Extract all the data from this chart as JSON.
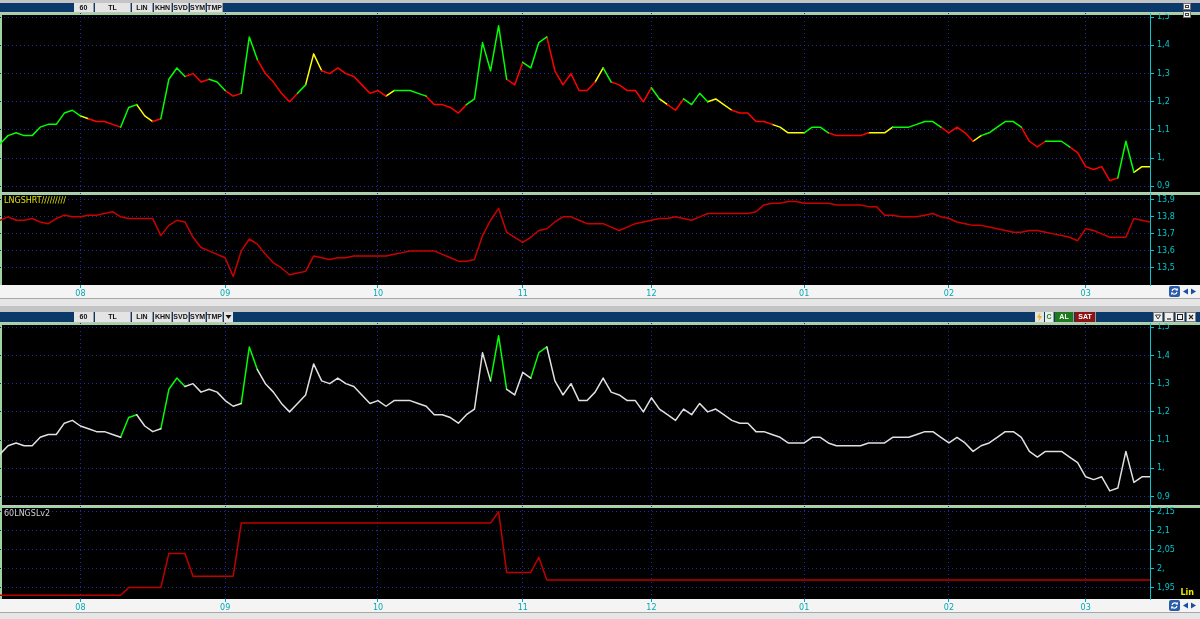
{
  "chart_data": [
    {
      "type": "line",
      "annotations": [
        "60",
        "TL",
        "LIN",
        "KHN",
        "SVD",
        "SYM",
        "TMP"
      ],
      "categories": [
        null,
        null,
        null,
        null,
        null,
        null,
        null,
        null,
        null,
        null,
        "08",
        null,
        null,
        null,
        null,
        null,
        null,
        null,
        null,
        null,
        null,
        null,
        null,
        null,
        null,
        null,
        null,
        null,
        "09",
        null,
        null,
        null,
        null,
        null,
        null,
        null,
        null,
        null,
        null,
        null,
        null,
        null,
        null,
        null,
        null,
        null,
        null,
        "10",
        null,
        null,
        null,
        null,
        null,
        null,
        null,
        null,
        null,
        null,
        null,
        null,
        null,
        null,
        null,
        null,
        null,
        "11",
        null,
        null,
        null,
        null,
        null,
        null,
        null,
        null,
        null,
        null,
        null,
        null,
        null,
        null,
        null,
        "12",
        null,
        null,
        null,
        null,
        null,
        null,
        null,
        null,
        null,
        null,
        null,
        null,
        null,
        null,
        null,
        null,
        null,
        null,
        "01",
        null,
        null,
        null,
        null,
        null,
        null,
        null,
        null,
        null,
        null,
        null,
        null,
        null,
        null,
        null,
        null,
        null,
        "02",
        null,
        null,
        null,
        null,
        null,
        null,
        null,
        null,
        null,
        null,
        null,
        null,
        null,
        null,
        null,
        null,
        "03",
        null,
        null,
        null,
        null,
        null,
        null,
        null,
        null
      ],
      "series": [
        {
          "color": "#00ff00",
          "values": [
            1.05,
            1.08,
            1.09,
            1.08,
            1.08,
            1.11,
            1.12,
            1.12,
            1.16,
            1.17,
            1.15,
            null,
            null,
            null,
            null,
            1.11,
            1.18,
            1.19,
            null,
            null,
            1.14,
            1.28,
            1.32,
            1.29,
            null,
            null,
            1.28,
            1.27,
            1.24,
            null,
            1.23,
            1.43,
            1.35,
            null,
            null,
            null,
            null,
            1.23,
            1.26,
            null,
            null,
            null,
            null,
            null,
            null,
            null,
            null,
            null,
            null,
            1.24,
            1.24,
            1.24,
            1.23,
            1.22,
            null,
            null,
            null,
            null,
            1.19,
            1.21,
            1.41,
            1.31,
            1.47,
            1.28,
            null,
            1.34,
            1.32,
            1.41,
            1.43,
            null,
            null,
            null,
            null,
            null,
            null,
            1.32,
            1.27,
            null,
            null,
            null,
            null,
            1.25,
            1.21,
            null,
            null,
            1.21,
            1.19,
            1.23,
            1.2,
            null,
            null,
            null,
            null,
            null,
            null,
            null,
            null,
            null,
            null,
            null,
            1.09,
            1.11,
            1.11,
            1.09,
            null,
            null,
            null,
            null,
            null,
            null,
            null,
            1.11,
            1.11,
            1.11,
            1.12,
            1.13,
            1.13,
            1.11,
            null,
            null,
            null,
            null,
            1.08,
            1.09,
            1.11,
            1.13,
            1.13,
            1.11,
            null,
            null,
            1.06,
            1.06,
            1.06,
            1.04,
            null,
            null,
            null,
            null,
            null,
            0.93,
            1.06,
            0.95,
            null,
            null
          ]
        },
        {
          "color": "#ff0000",
          "values": [
            null,
            null,
            null,
            null,
            null,
            null,
            null,
            null,
            null,
            null,
            null,
            1.14,
            1.13,
            1.13,
            1.12,
            1.11,
            null,
            null,
            null,
            1.13,
            1.14,
            null,
            null,
            1.29,
            1.3,
            1.27,
            1.28,
            null,
            1.24,
            1.22,
            1.23,
            null,
            1.35,
            1.3,
            1.27,
            1.23,
            1.2,
            1.23,
            null,
            null,
            1.31,
            1.3,
            1.32,
            1.3,
            1.29,
            1.26,
            1.23,
            1.24,
            1.22,
            null,
            null,
            null,
            null,
            1.22,
            1.19,
            1.19,
            1.18,
            1.16,
            1.19,
            null,
            null,
            null,
            null,
            1.28,
            1.26,
            1.34,
            null,
            null,
            1.43,
            1.31,
            1.26,
            1.3,
            1.24,
            1.24,
            1.27,
            null,
            1.27,
            1.26,
            1.24,
            1.24,
            1.2,
            1.25,
            null,
            1.19,
            1.17,
            1.21,
            null,
            null,
            null,
            null,
            null,
            1.17,
            1.16,
            1.16,
            1.13,
            1.13,
            1.12,
            null,
            null,
            null,
            null,
            null,
            null,
            1.09,
            1.08,
            1.08,
            1.08,
            1.08,
            1.09,
            null,
            null,
            null,
            null,
            null,
            null,
            null,
            null,
            1.11,
            1.09,
            1.11,
            1.09,
            1.06,
            null,
            null,
            null,
            null,
            null,
            1.11,
            1.06,
            1.04,
            1.06,
            null,
            null,
            1.04,
            1.02,
            0.97,
            0.96,
            0.97,
            0.92,
            0.93,
            null,
            null,
            null,
            null
          ]
        },
        {
          "color": "#ffff00",
          "values": [
            null,
            null,
            null,
            null,
            null,
            null,
            null,
            null,
            null,
            null,
            1.15,
            1.14,
            null,
            null,
            null,
            null,
            null,
            1.19,
            1.15,
            1.13,
            null,
            null,
            null,
            null,
            null,
            null,
            null,
            null,
            null,
            null,
            null,
            null,
            null,
            null,
            null,
            null,
            null,
            null,
            1.26,
            1.37,
            1.31,
            null,
            null,
            null,
            null,
            null,
            null,
            null,
            1.22,
            1.24,
            null,
            null,
            null,
            null,
            null,
            null,
            null,
            null,
            null,
            null,
            null,
            null,
            null,
            null,
            null,
            null,
            null,
            null,
            null,
            null,
            null,
            null,
            null,
            null,
            1.27,
            1.32,
            null,
            null,
            null,
            null,
            null,
            null,
            1.21,
            1.19,
            null,
            null,
            null,
            null,
            1.2,
            1.21,
            1.19,
            1.17,
            null,
            null,
            null,
            null,
            1.12,
            1.11,
            1.09,
            1.09,
            1.09,
            null,
            null,
            null,
            null,
            null,
            null,
            null,
            1.09,
            1.09,
            1.09,
            1.11,
            null,
            null,
            null,
            null,
            null,
            null,
            null,
            null,
            null,
            1.06,
            1.08,
            null,
            null,
            null,
            null,
            null,
            null,
            null,
            null,
            null,
            null,
            null,
            null,
            null,
            null,
            null,
            null,
            null,
            null,
            0.95,
            0.97,
            0.97
          ]
        }
      ],
      "ylim": [
        0.88,
        1.515
      ],
      "yticks": [
        {
          "value": 0.9,
          "label": "0,9"
        },
        {
          "value": 1,
          "label": "1,"
        },
        {
          "value": 1.1,
          "label": "1,1"
        },
        {
          "value": 1.2,
          "label": "1,2"
        },
        {
          "value": 1.3,
          "label": "1,3"
        },
        {
          "value": 1.4,
          "label": "1,4"
        },
        {
          "value": 1.5,
          "label": "1,5"
        }
      ],
      "grid": true,
      "tick_labels": "y",
      "marker": "none"
    },
    {
      "type": "line",
      "title": "LNGSHRT/////////",
      "categories": [
        null,
        null,
        null,
        null,
        null,
        null,
        null,
        null,
        null,
        null,
        "08",
        null,
        null,
        null,
        null,
        null,
        null,
        null,
        null,
        null,
        null,
        null,
        null,
        null,
        null,
        null,
        null,
        null,
        "09",
        null,
        null,
        null,
        null,
        null,
        null,
        null,
        null,
        null,
        null,
        null,
        null,
        null,
        null,
        null,
        null,
        null,
        null,
        "10",
        null,
        null,
        null,
        null,
        null,
        null,
        null,
        null,
        null,
        null,
        null,
        null,
        null,
        null,
        null,
        null,
        null,
        "11",
        null,
        null,
        null,
        null,
        null,
        null,
        null,
        null,
        null,
        null,
        null,
        null,
        null,
        null,
        null,
        "12",
        null,
        null,
        null,
        null,
        null,
        null,
        null,
        null,
        null,
        null,
        null,
        null,
        null,
        null,
        null,
        null,
        null,
        null,
        "01",
        null,
        null,
        null,
        null,
        null,
        null,
        null,
        null,
        null,
        null,
        null,
        null,
        null,
        null,
        null,
        null,
        null,
        "02",
        null,
        null,
        null,
        null,
        null,
        null,
        null,
        null,
        null,
        null,
        null,
        null,
        null,
        null,
        null,
        null,
        "03",
        null,
        null,
        null,
        null,
        null,
        null,
        null,
        null
      ],
      "series": [
        {
          "color": "#cc0000",
          "values": [
            13.78,
            13.8,
            13.78,
            13.78,
            13.79,
            13.77,
            13.76,
            13.79,
            13.81,
            13.8,
            13.8,
            13.81,
            13.81,
            13.82,
            13.83,
            13.8,
            13.79,
            13.79,
            13.79,
            13.79,
            13.69,
            13.75,
            13.78,
            13.77,
            13.68,
            13.62,
            13.6,
            13.58,
            13.56,
            13.45,
            13.6,
            13.67,
            13.64,
            13.58,
            13.53,
            13.5,
            13.46,
            13.47,
            13.48,
            13.57,
            13.56,
            13.55,
            13.56,
            13.56,
            13.57,
            13.57,
            13.57,
            13.57,
            13.57,
            13.58,
            13.59,
            13.6,
            13.6,
            13.6,
            13.6,
            13.58,
            13.56,
            13.54,
            13.54,
            13.55,
            13.69,
            13.78,
            13.85,
            13.71,
            13.68,
            13.65,
            13.68,
            13.72,
            13.73,
            13.77,
            13.8,
            13.8,
            13.78,
            13.76,
            13.76,
            13.76,
            13.74,
            13.72,
            13.74,
            13.76,
            13.77,
            13.78,
            13.79,
            13.79,
            13.8,
            13.79,
            13.78,
            13.8,
            13.82,
            13.82,
            13.82,
            13.82,
            13.82,
            13.82,
            13.83,
            13.87,
            13.88,
            13.88,
            13.89,
            13.89,
            13.88,
            13.88,
            13.88,
            13.88,
            13.87,
            13.87,
            13.87,
            13.87,
            13.86,
            13.86,
            13.81,
            13.81,
            13.8,
            13.8,
            13.8,
            13.81,
            13.82,
            13.8,
            13.79,
            13.77,
            13.76,
            13.75,
            13.75,
            13.74,
            13.73,
            13.72,
            13.71,
            13.71,
            13.72,
            13.72,
            13.71,
            13.7,
            13.69,
            13.68,
            13.66,
            13.73,
            13.72,
            13.7,
            13.68,
            13.68,
            13.68,
            13.79,
            13.78,
            13.77
          ]
        }
      ],
      "ylim": [
        13.4,
        13.94
      ],
      "yticks": [
        {
          "value": 13.5,
          "label": "13,5"
        },
        {
          "value": 13.6,
          "label": "13,6"
        },
        {
          "value": 13.7,
          "label": "13,7"
        },
        {
          "value": 13.8,
          "label": "13,8"
        },
        {
          "value": 13.9,
          "label": "13,9"
        }
      ],
      "grid": true,
      "marker": "none"
    },
    {
      "type": "line",
      "annotations": [
        "60",
        "TL",
        "LIN",
        "KHN",
        "SVD",
        "SYM",
        "TMP",
        "C",
        "AL",
        "SAT"
      ],
      "categories": [
        null,
        null,
        null,
        null,
        null,
        null,
        null,
        null,
        null,
        null,
        "08",
        null,
        null,
        null,
        null,
        null,
        null,
        null,
        null,
        null,
        null,
        null,
        null,
        null,
        null,
        null,
        null,
        null,
        "09",
        null,
        null,
        null,
        null,
        null,
        null,
        null,
        null,
        null,
        null,
        null,
        null,
        null,
        null,
        null,
        null,
        null,
        null,
        "10",
        null,
        null,
        null,
        null,
        null,
        null,
        null,
        null,
        null,
        null,
        null,
        null,
        null,
        null,
        null,
        null,
        null,
        "11",
        null,
        null,
        null,
        null,
        null,
        null,
        null,
        null,
        null,
        null,
        null,
        null,
        null,
        null,
        null,
        "12",
        null,
        null,
        null,
        null,
        null,
        null,
        null,
        null,
        null,
        null,
        null,
        null,
        null,
        null,
        null,
        null,
        null,
        null,
        "01",
        null,
        null,
        null,
        null,
        null,
        null,
        null,
        null,
        null,
        null,
        null,
        null,
        null,
        null,
        null,
        null,
        null,
        "02",
        null,
        null,
        null,
        null,
        null,
        null,
        null,
        null,
        null,
        null,
        null,
        null,
        null,
        null,
        null,
        null,
        "03",
        null,
        null,
        null,
        null,
        null,
        null,
        null,
        null
      ],
      "series": [
        {
          "color": "#e0e0e0",
          "values": [
            1.05,
            1.08,
            1.09,
            1.08,
            1.08,
            1.11,
            1.12,
            1.12,
            1.16,
            1.17,
            1.15,
            1.14,
            1.13,
            1.13,
            1.12,
            1.11,
            null,
            1.19,
            1.15,
            1.13,
            1.14,
            null,
            null,
            1.29,
            1.3,
            1.27,
            1.28,
            1.27,
            1.24,
            1.22,
            1.23,
            null,
            1.35,
            1.3,
            1.27,
            1.23,
            1.2,
            1.23,
            1.26,
            1.37,
            1.31,
            1.3,
            1.32,
            1.3,
            1.29,
            1.26,
            1.23,
            1.24,
            1.22,
            1.24,
            1.24,
            1.24,
            1.23,
            1.22,
            1.19,
            1.19,
            1.18,
            1.16,
            1.19,
            1.21,
            1.41,
            1.31,
            null,
            1.28,
            1.26,
            1.34,
            1.32,
            null,
            1.43,
            1.31,
            1.26,
            1.3,
            1.24,
            1.24,
            1.27,
            1.32,
            1.27,
            1.26,
            1.24,
            1.24,
            1.2,
            1.25,
            1.21,
            1.19,
            1.17,
            1.21,
            1.19,
            1.23,
            1.2,
            1.21,
            1.19,
            1.17,
            1.16,
            1.16,
            1.13,
            1.13,
            1.12,
            1.11,
            1.09,
            1.09,
            1.09,
            1.11,
            1.11,
            1.09,
            1.08,
            1.08,
            1.08,
            1.08,
            1.09,
            1.09,
            1.09,
            1.11,
            1.11,
            1.11,
            1.12,
            1.13,
            1.13,
            1.11,
            1.09,
            1.11,
            1.09,
            1.06,
            1.08,
            1.09,
            1.11,
            1.13,
            1.13,
            1.11,
            1.06,
            1.04,
            1.06,
            1.06,
            1.06,
            1.04,
            1.02,
            0.97,
            0.96,
            0.97,
            0.92,
            0.93,
            1.06,
            0.95,
            0.97,
            0.97
          ]
        },
        {
          "color": "#00ff00",
          "values": [
            null,
            null,
            null,
            null,
            null,
            null,
            null,
            null,
            null,
            null,
            null,
            null,
            null,
            null,
            null,
            1.11,
            1.18,
            1.19,
            null,
            null,
            1.14,
            1.28,
            1.32,
            1.29,
            null,
            null,
            null,
            null,
            null,
            null,
            1.23,
            1.43,
            1.35,
            null,
            null,
            null,
            null,
            null,
            null,
            null,
            null,
            null,
            null,
            null,
            null,
            null,
            null,
            null,
            null,
            null,
            null,
            null,
            null,
            null,
            null,
            null,
            null,
            null,
            null,
            null,
            null,
            1.31,
            1.47,
            1.28,
            null,
            null,
            1.32,
            1.41,
            1.43,
            null,
            null,
            null,
            null,
            null,
            null,
            null,
            null,
            null,
            null,
            null,
            null,
            null,
            null,
            null,
            null,
            null,
            null,
            null,
            null,
            null,
            null,
            null,
            null,
            null,
            null,
            null,
            null,
            null,
            null,
            null,
            null,
            null,
            null,
            null,
            null,
            null,
            null,
            null,
            null,
            null,
            null,
            null,
            null,
            null,
            null,
            null,
            null,
            null,
            null,
            null,
            null,
            null,
            null,
            null,
            null,
            null,
            null,
            null,
            null,
            null,
            null,
            null,
            null,
            null,
            null,
            null,
            null,
            null,
            null,
            null,
            null,
            null,
            null,
            null
          ]
        }
      ],
      "ylim": [
        0.87,
        1.515
      ],
      "yticks": [
        {
          "value": 0.9,
          "label": "0,9"
        },
        {
          "value": 1,
          "label": "1,"
        },
        {
          "value": 1.1,
          "label": "1,1"
        },
        {
          "value": 1.2,
          "label": "1,2"
        },
        {
          "value": 1.3,
          "label": "1,3"
        },
        {
          "value": 1.4,
          "label": "1,4"
        },
        {
          "value": 1.5,
          "label": "1,5"
        }
      ],
      "grid": true,
      "tick_labels": "y",
      "marker": "none"
    },
    {
      "type": "line",
      "title": "60LNGSLv2",
      "annotations": [
        "Lin"
      ],
      "categories": [
        null,
        null,
        null,
        null,
        null,
        null,
        null,
        null,
        null,
        null,
        "08",
        null,
        null,
        null,
        null,
        null,
        null,
        null,
        null,
        null,
        null,
        null,
        null,
        null,
        null,
        null,
        null,
        null,
        "09",
        null,
        null,
        null,
        null,
        null,
        null,
        null,
        null,
        null,
        null,
        null,
        null,
        null,
        null,
        null,
        null,
        null,
        null,
        "10",
        null,
        null,
        null,
        null,
        null,
        null,
        null,
        null,
        null,
        null,
        null,
        null,
        null,
        null,
        null,
        null,
        null,
        "11",
        null,
        null,
        null,
        null,
        null,
        null,
        null,
        null,
        null,
        null,
        null,
        null,
        null,
        null,
        null,
        "12",
        null,
        null,
        null,
        null,
        null,
        null,
        null,
        null,
        null,
        null,
        null,
        null,
        null,
        null,
        null,
        null,
        null,
        null,
        "01",
        null,
        null,
        null,
        null,
        null,
        null,
        null,
        null,
        null,
        null,
        null,
        null,
        null,
        null,
        null,
        null,
        null,
        "02",
        null,
        null,
        null,
        null,
        null,
        null,
        null,
        null,
        null,
        null,
        null,
        null,
        null,
        null,
        null,
        null,
        "03",
        null,
        null,
        null,
        null,
        null,
        null,
        null,
        null
      ],
      "series": [
        {
          "color": "#c00000",
          "values": [
            1.93,
            1.93,
            1.93,
            1.93,
            1.93,
            1.93,
            1.93,
            1.93,
            1.93,
            1.93,
            1.93,
            1.93,
            1.93,
            1.93,
            1.93,
            1.93,
            1.95,
            1.95,
            1.95,
            1.95,
            1.95,
            2.04,
            2.04,
            2.04,
            1.98,
            1.98,
            1.98,
            1.98,
            1.98,
            1.98,
            2.12,
            2.12,
            2.12,
            2.12,
            2.12,
            2.12,
            2.12,
            2.12,
            2.12,
            2.12,
            2.12,
            2.12,
            2.12,
            2.12,
            2.12,
            2.12,
            2.12,
            2.12,
            2.12,
            2.12,
            2.12,
            2.12,
            2.12,
            2.12,
            2.12,
            2.12,
            2.12,
            2.12,
            2.12,
            2.12,
            2.12,
            2.12,
            2.15,
            1.99,
            1.99,
            1.99,
            1.99,
            2.03,
            1.97,
            1.97,
            1.97,
            1.97,
            1.97,
            1.97,
            1.97,
            1.97,
            1.97,
            1.97,
            1.97,
            1.97,
            1.97,
            1.97,
            1.97,
            1.97,
            1.97,
            1.97,
            1.97,
            1.97,
            1.97,
            1.97,
            1.97,
            1.97,
            1.97,
            1.97,
            1.97,
            1.97,
            1.97,
            1.97,
            1.97,
            1.97,
            1.97,
            1.97,
            1.97,
            1.97,
            1.97,
            1.97,
            1.97,
            1.97,
            1.97,
            1.97,
            1.97,
            1.97,
            1.97,
            1.97,
            1.97,
            1.97,
            1.97,
            1.97,
            1.97,
            1.97,
            1.97,
            1.97,
            1.97,
            1.97,
            1.97,
            1.97,
            1.97,
            1.97,
            1.97,
            1.97,
            1.97,
            1.97,
            1.97,
            1.97,
            1.97,
            1.97,
            1.97,
            1.97,
            1.97,
            1.97,
            1.97,
            1.97,
            1.97,
            1.97
          ]
        }
      ],
      "ylim": [
        1.92,
        2.165
      ],
      "yticks": [
        {
          "value": 1.95,
          "label": "1,95"
        },
        {
          "value": 2,
          "label": "2,"
        },
        {
          "value": 2.05,
          "label": "2,05"
        },
        {
          "value": 2.1,
          "label": "2,1"
        },
        {
          "value": 2.15,
          "label": "2,15"
        }
      ],
      "grid": true,
      "marker": "none"
    }
  ]
}
